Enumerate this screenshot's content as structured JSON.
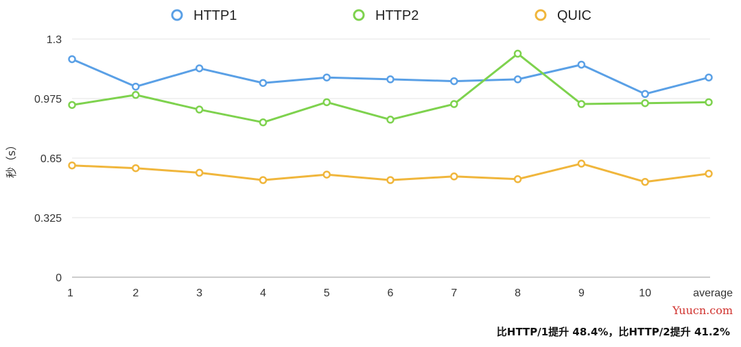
{
  "chart_data": {
    "type": "line",
    "categories": [
      "1",
      "2",
      "3",
      "4",
      "5",
      "6",
      "7",
      "8",
      "9",
      "10",
      "average"
    ],
    "series": [
      {
        "name": "HTTP1",
        "color": "#5aa0e6",
        "values": [
          1.19,
          1.04,
          1.14,
          1.06,
          1.09,
          1.08,
          1.07,
          1.08,
          1.16,
          1.0,
          1.09
        ]
      },
      {
        "name": "HTTP2",
        "color": "#7ed24e",
        "values": [
          0.94,
          0.995,
          0.915,
          0.845,
          0.955,
          0.86,
          0.945,
          1.22,
          0.945,
          0.95,
          0.955
        ]
      },
      {
        "name": "QUIC",
        "color": "#f0b63c",
        "values": [
          0.61,
          0.595,
          0.57,
          0.53,
          0.56,
          0.53,
          0.55,
          0.535,
          0.62,
          0.52,
          0.565
        ]
      }
    ],
    "yticks": [
      "0",
      "0.325",
      "0.65",
      "0.975",
      "1.3"
    ],
    "ylim": [
      0,
      1.3
    ],
    "ylabel": "秒（s）",
    "grid": true,
    "legend": "top-center"
  },
  "annotation": "比HTTP/1提升 48.4%，比HTTP/2提升 41.2%",
  "watermark": "Yuucn.com"
}
